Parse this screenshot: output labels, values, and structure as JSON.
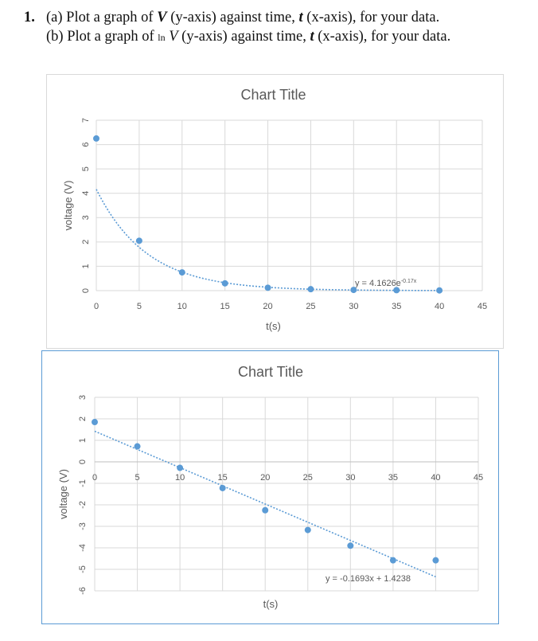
{
  "question": {
    "number": "1.",
    "line_a": {
      "prefix": "(a) Plot a graph of ",
      "var_v": "V",
      "mid1": " (y-axis) against time, ",
      "var_t": "t",
      "suffix": " (x-axis), for your data."
    },
    "line_b": {
      "prefix": "(b) Plot a graph of ",
      "ln": "ln",
      "var_v": "V",
      "mid1": " (y-axis) against time, ",
      "var_t": "t",
      "suffix": " (x-axis), for your data."
    }
  },
  "colors": {
    "marker": "#5b9bd5",
    "trendline": "#5b9bd5",
    "grid": "#d9d9d9",
    "axis_text": "#595959",
    "title_text": "#595959",
    "frame1": "#d9d9d9",
    "frame2": "#5b9bd5"
  },
  "chart_data": [
    {
      "type": "scatter",
      "title": "Chart Title",
      "xlabel": "t(s)",
      "ylabel": "voltage (V)",
      "xlim": [
        0,
        45
      ],
      "ylim": [
        0,
        7
      ],
      "xticks": [
        0,
        5,
        10,
        15,
        20,
        25,
        30,
        35,
        40,
        45
      ],
      "yticks": [
        0,
        1,
        2,
        3,
        4,
        5,
        6,
        7
      ],
      "grid": true,
      "series": [
        {
          "x": [
            0,
            5,
            10,
            15,
            20,
            25,
            30,
            35,
            40
          ],
          "y": [
            6.25,
            2.05,
            0.75,
            0.3,
            0.12,
            0.06,
            0.03,
            0.02,
            0.01
          ]
        }
      ],
      "trendline": {
        "kind": "exponential",
        "a": 4.1626,
        "b": -0.17,
        "label_main": "y = 4.1626e",
        "label_exp": "-0.17x"
      }
    },
    {
      "type": "scatter",
      "title": "Chart Title",
      "xlabel": "t(s)",
      "ylabel": "voltage (V)",
      "xlim": [
        0,
        45
      ],
      "ylim": [
        -6,
        3
      ],
      "xticks": [
        0,
        5,
        10,
        15,
        20,
        25,
        30,
        35,
        40,
        45
      ],
      "yticks": [
        -6,
        -5,
        -4,
        -3,
        -2,
        -1,
        0,
        1,
        2,
        3
      ],
      "grid": true,
      "series": [
        {
          "x": [
            0,
            5,
            10,
            15,
            20,
            25,
            30,
            35,
            40
          ],
          "y": [
            1.85,
            0.72,
            -0.28,
            -1.22,
            -2.25,
            -3.17,
            -3.9,
            -4.58,
            -4.58
          ]
        }
      ],
      "trendline": {
        "kind": "linear",
        "m": -0.1693,
        "c": 1.4238,
        "label_main": "y = -0.1693x + 1.4238",
        "label_exp": ""
      }
    }
  ]
}
